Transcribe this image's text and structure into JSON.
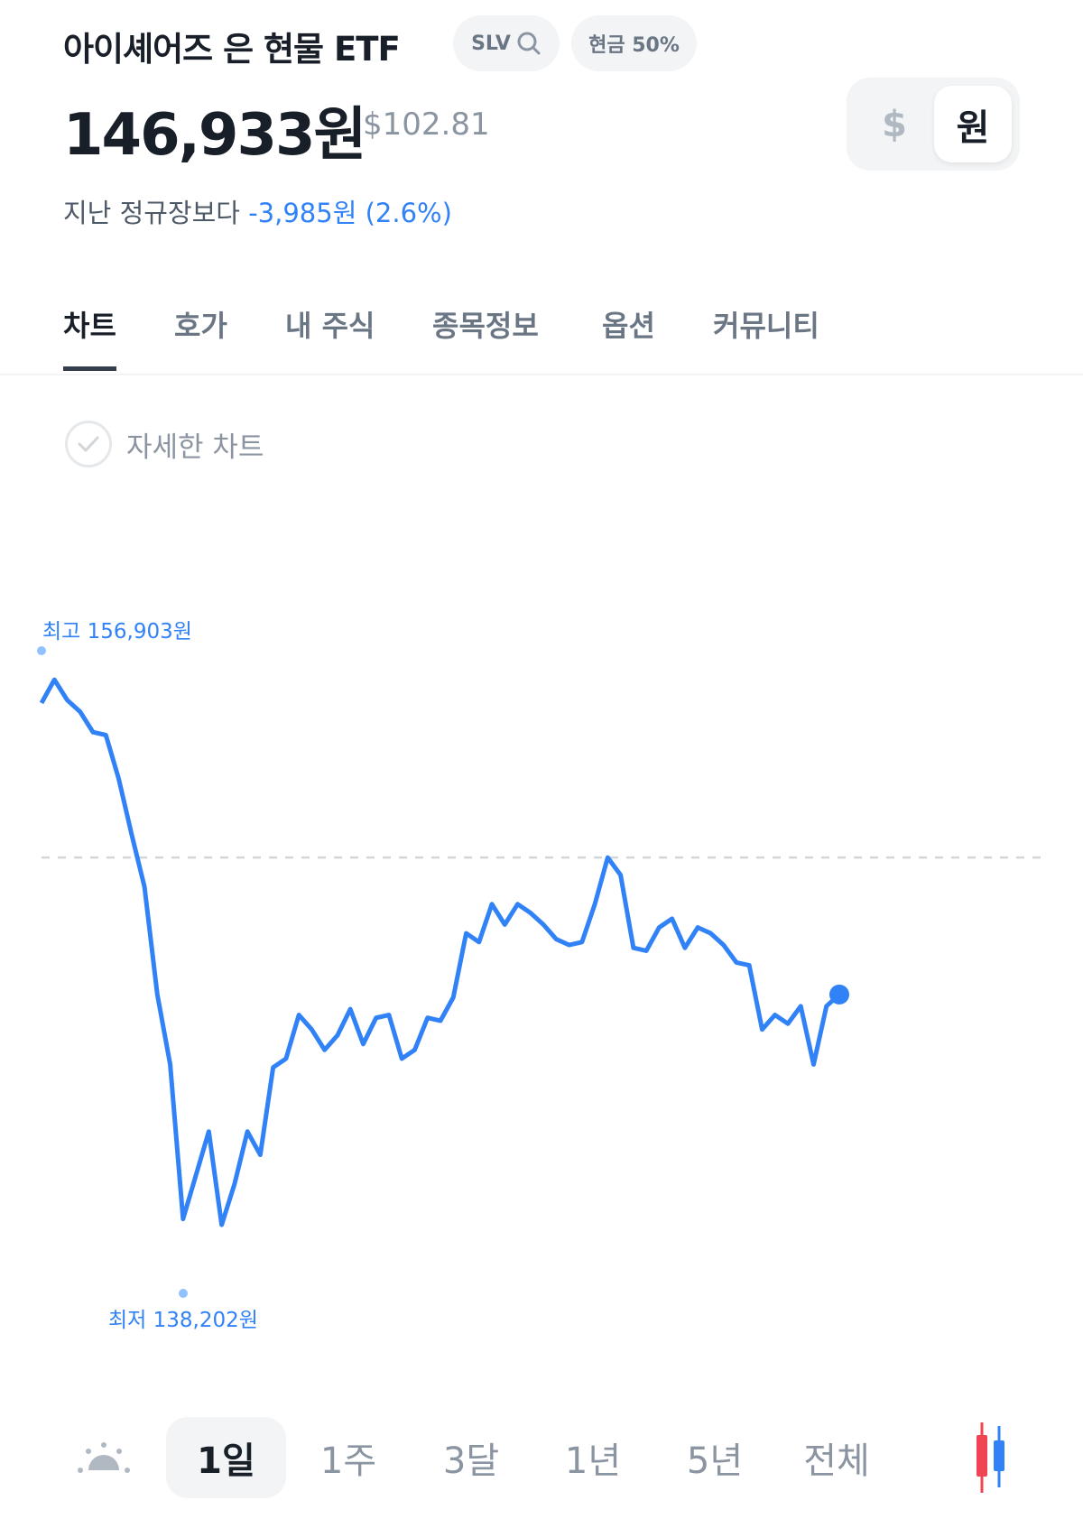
{
  "header": {
    "title": "아이셰어즈 은 현물 ETF",
    "ticker_chip": "SLV",
    "cash_chip": "현금 50%",
    "price": "146,933원",
    "price_usd": "$102.81",
    "change_prefix": "지난 정규장보다",
    "change_value": "-3,985원 (2.6%)"
  },
  "currency_toggle": {
    "options": [
      "$",
      "원"
    ],
    "selected": "원"
  },
  "tabs": [
    {
      "label": "차트",
      "active": true
    },
    {
      "label": "호가"
    },
    {
      "label": "내 주식"
    },
    {
      "label": "종목정보"
    },
    {
      "label": "옵션"
    },
    {
      "label": "커뮤니티"
    }
  ],
  "detail_chart": {
    "label": "자세한 차트",
    "checked": false
  },
  "chart_data": {
    "type": "line",
    "high_label": "최고 156,903원",
    "low_label": "최저 138,202원",
    "ylim": [
      138202,
      156903
    ],
    "reference_line": 150800,
    "line_color": "#3182f6",
    "values": [
      156100,
      156900,
      156200,
      155800,
      155100,
      155000,
      153500,
      151600,
      149800,
      146100,
      143700,
      138400,
      139900,
      141400,
      138200,
      139600,
      141400,
      140600,
      143600,
      143900,
      145400,
      144900,
      144200,
      144700,
      145600,
      144400,
      145300,
      145400,
      143900,
      144200,
      145300,
      145200,
      146000,
      148200,
      147900,
      149200,
      148500,
      149200,
      148900,
      148500,
      148000,
      147800,
      147900,
      149200,
      150800,
      150200,
      147700,
      147600,
      148400,
      148700,
      147700,
      148400,
      148200,
      147800,
      147200,
      147100,
      144900,
      145400,
      145100,
      145700,
      143700,
      145700,
      146100
    ]
  },
  "periods": [
    {
      "label": "1일",
      "active": true
    },
    {
      "label": "1주"
    },
    {
      "label": "3달"
    },
    {
      "label": "1년"
    },
    {
      "label": "5년"
    },
    {
      "label": "전체"
    }
  ],
  "icons": {
    "sunrise": "sunrise-icon",
    "candle": "candlestick-icon"
  }
}
